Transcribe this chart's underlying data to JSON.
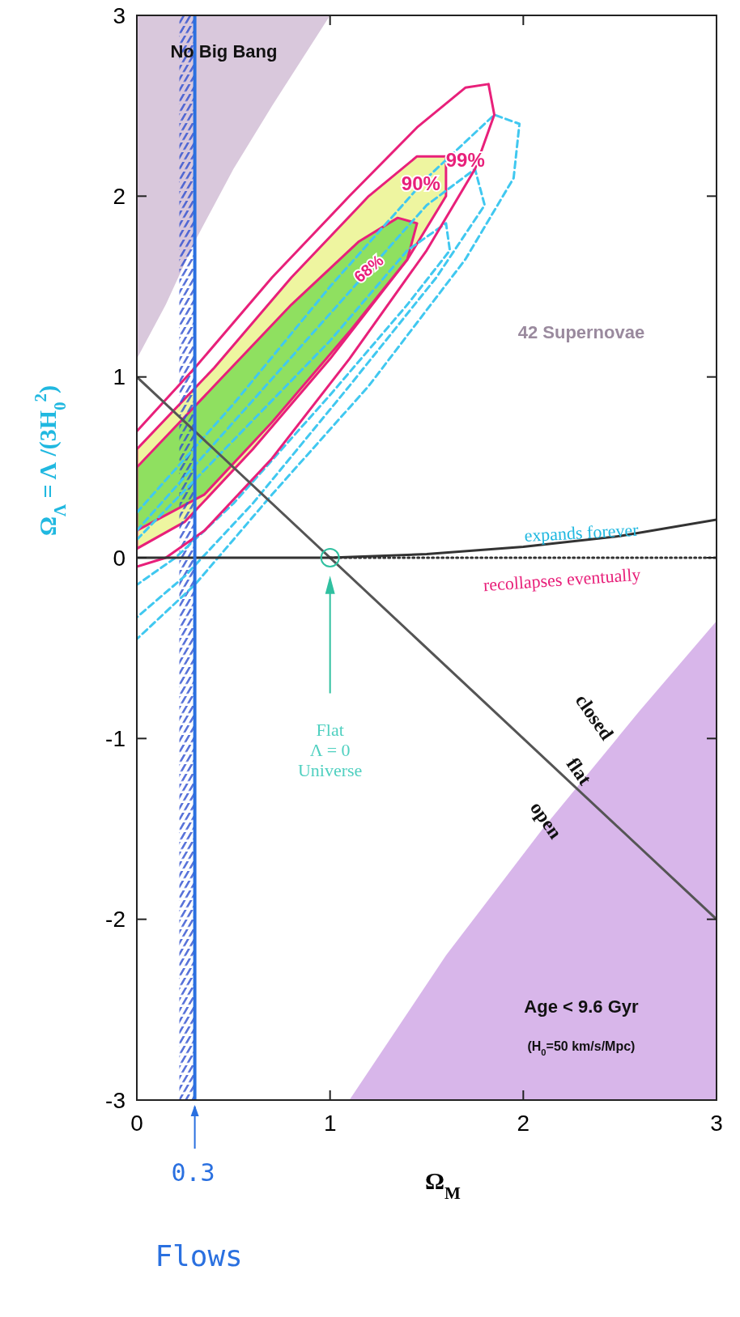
{
  "chart_data": {
    "type": "line",
    "xlabel": "Ω$_{M}$",
    "ylabel": "Ω$_{Λ}$  = Λ /(3H$_{0}$$^{2}$)",
    "xlim": [
      0,
      3
    ],
    "ylim": [
      -3,
      3
    ],
    "xticks": [
      0,
      1,
      2,
      3
    ],
    "yticks": [
      -3,
      -2,
      -1,
      0,
      1,
      2,
      3
    ],
    "series": [
      {
        "type": "area",
        "color": "#d9c8dc",
        "x": [
          0,
          0,
          0.15,
          0.3,
          0.5,
          0.7,
          1.0
        ],
        "values": [
          3,
          1.1,
          1.4,
          1.75,
          2.15,
          2.5,
          3
        ]
      },
      {
        "type": "area",
        "color": "#d8b6ea",
        "x": [
          1.1,
          1.6,
          2.1,
          2.6,
          3,
          3
        ],
        "values": [
          -3,
          -2.2,
          -1.5,
          -0.85,
          -0.35,
          -3
        ]
      },
      {
        "type": "area",
        "color": "#eef5a0",
        "x": [
          0,
          0.4,
          0.8,
          1.2,
          1.45,
          1.6,
          1.6,
          1.4,
          1.0,
          0.6,
          0.25,
          0
        ],
        "values": [
          0.6,
          1.05,
          1.55,
          2.0,
          2.22,
          2.22,
          2.0,
          1.65,
          1.1,
          0.6,
          0.2,
          0.05
        ]
      },
      {
        "type": "area",
        "color": "#8fe060",
        "x": [
          0,
          0.4,
          0.8,
          1.15,
          1.35,
          1.45,
          1.4,
          1.1,
          0.7,
          0.35,
          0
        ],
        "values": [
          0.5,
          0.95,
          1.4,
          1.75,
          1.88,
          1.85,
          1.65,
          1.25,
          0.75,
          0.35,
          0.15
        ]
      },
      {
        "color": "#40c8f0",
        "line_style": "dashed",
        "x": [
          0,
          0.5,
          1.0,
          1.5,
          1.85,
          1.98,
          1.95,
          1.7,
          1.2,
          0.7,
          0.3,
          0
        ],
        "values": [
          0.25,
          0.85,
          1.5,
          2.1,
          2.45,
          2.4,
          2.1,
          1.65,
          0.95,
          0.35,
          -0.15,
          -0.45
        ]
      },
      {
        "color": "#40c8f0",
        "line_style": "dashed",
        "x": [
          0,
          0.5,
          1.0,
          1.5,
          1.75,
          1.8,
          1.55,
          1.1,
          0.6,
          0.25,
          0
        ],
        "values": [
          0.15,
          0.75,
          1.35,
          1.95,
          2.15,
          1.95,
          1.55,
          0.95,
          0.3,
          -0.1,
          -0.33
        ]
      },
      {
        "color": "#40c8f0",
        "line_style": "dashed",
        "x": [
          0,
          0.5,
          1.0,
          1.4,
          1.6,
          1.62,
          1.4,
          1.0,
          0.5,
          0.2,
          0
        ],
        "values": [
          0.1,
          0.65,
          1.2,
          1.7,
          1.85,
          1.7,
          1.4,
          0.9,
          0.3,
          0,
          -0.15
        ]
      },
      {
        "color": "#e8207a",
        "x": [
          0,
          0.3,
          0.7,
          1.1,
          1.45,
          1.7,
          1.82,
          1.85,
          1.75,
          1.5,
          1.1,
          0.7,
          0.35,
          0.15,
          0
        ],
        "values": [
          0.7,
          1.05,
          1.55,
          2.0,
          2.38,
          2.6,
          2.62,
          2.45,
          2.15,
          1.7,
          1.1,
          0.55,
          0.15,
          0,
          -0.05
        ]
      },
      {
        "color": "#555555",
        "x": [
          0,
          3
        ],
        "values": [
          1,
          -2
        ]
      },
      {
        "color": "#333333",
        "x": [
          0,
          0.5,
          1,
          1.5,
          2,
          2.5,
          3
        ],
        "values": [
          0,
          0,
          0,
          0.02,
          0.06,
          0.12,
          0.21
        ]
      },
      {
        "color": "#333333",
        "line_style": "dotted",
        "x": [
          1,
          3
        ],
        "values": [
          0,
          0
        ]
      },
      {
        "type": "scatter",
        "color": "#30c0a0",
        "marker": "circle",
        "x": [
          1
        ],
        "values": [
          0
        ]
      }
    ],
    "ref_lines": [
      {
        "axis": "x",
        "value": 0.3,
        "label": "0.3",
        "color": "#2a70e0"
      }
    ],
    "bands": [
      {
        "axis": "x",
        "from": 0.22,
        "to": 0.3,
        "color": "#3050d0"
      }
    ],
    "annotations": [
      "No Big Bang",
      "42 Supernovae",
      "99%",
      "90%",
      "68%",
      "expands forever",
      "recollapses eventually",
      "Flat\nΛ = 0\nUniverse",
      "closed",
      "flat",
      "open",
      "Age < 9.6 Gyr",
      "(H$_{0}$=50 km/s/Mpc)",
      "Flows"
    ]
  }
}
